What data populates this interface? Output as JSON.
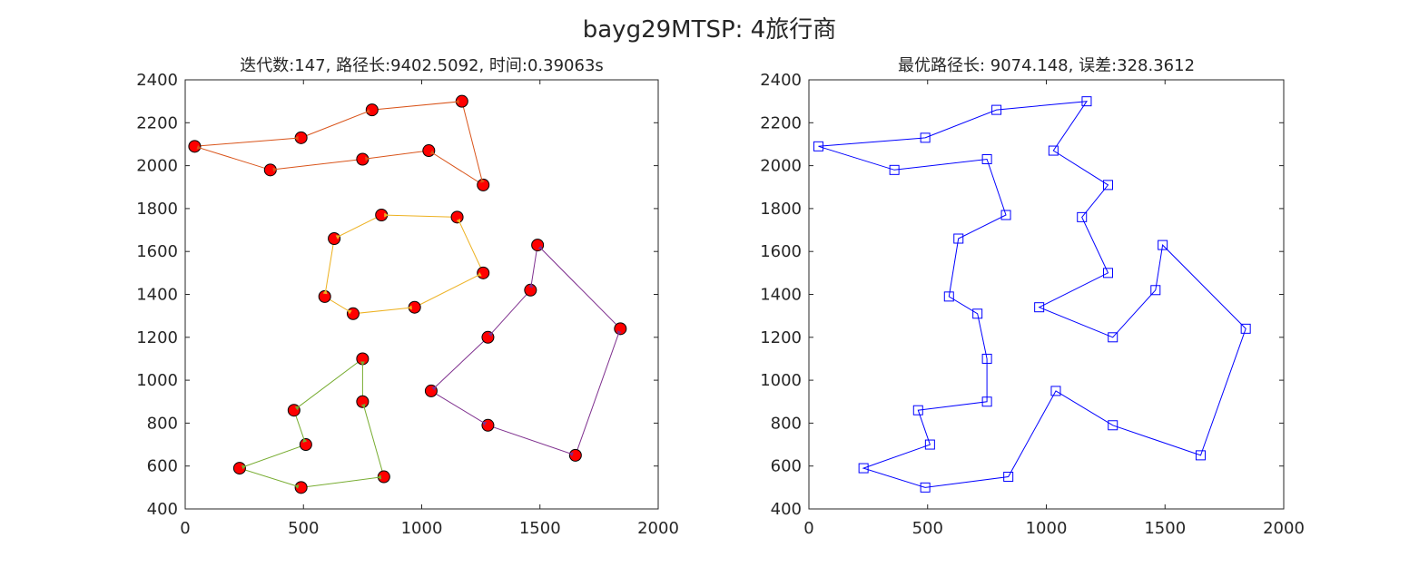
{
  "figure": {
    "title": "bayg29MTSP: 4旅行商"
  },
  "chart_data": [
    {
      "type": "line",
      "panel": "left",
      "title": "迭代数:147, 路径长:9402.5092, 时间:0.39063s",
      "xlabel": "",
      "ylabel": "",
      "xlim": [
        0,
        2000
      ],
      "ylim": [
        400,
        2400
      ],
      "x_ticks": [
        0,
        500,
        1000,
        1500,
        2000
      ],
      "y_ticks": [
        400,
        600,
        800,
        1000,
        1200,
        1400,
        1600,
        1800,
        2000,
        2200,
        2400
      ],
      "grid": false,
      "marker_face": "#ff0000",
      "marker_edge": "#000000",
      "series": [
        {
          "color": "#d95319",
          "x": [
            40,
            360,
            750,
            1030,
            1260,
            1170,
            790,
            490,
            40
          ],
          "y": [
            2090,
            1980,
            2030,
            2070,
            1910,
            2300,
            2260,
            2130,
            2090
          ]
        },
        {
          "color": "#edb120",
          "x": [
            630,
            830,
            1150,
            1260,
            970,
            710,
            590,
            630
          ],
          "y": [
            1660,
            1770,
            1760,
            1500,
            1340,
            1310,
            1390,
            1660
          ]
        },
        {
          "color": "#7e2f8e",
          "x": [
            1040,
            1280,
            1460,
            1490,
            1840,
            1650,
            1280,
            1040
          ],
          "y": [
            950,
            1200,
            1420,
            1630,
            1240,
            650,
            790,
            950
          ]
        },
        {
          "color": "#77ac30",
          "x": [
            460,
            750,
            750,
            840,
            490,
            230,
            510,
            460
          ],
          "y": [
            860,
            1100,
            900,
            550,
            500,
            590,
            700,
            860
          ]
        }
      ]
    },
    {
      "type": "line",
      "panel": "right",
      "title": "最优路径长: 9074.148, 误差:328.3612",
      "xlabel": "",
      "ylabel": "",
      "xlim": [
        0,
        2000
      ],
      "ylim": [
        400,
        2400
      ],
      "x_ticks": [
        0,
        500,
        1000,
        1500,
        2000
      ],
      "y_ticks": [
        400,
        600,
        800,
        1000,
        1200,
        1400,
        1600,
        1800,
        2000,
        2200,
        2400
      ],
      "grid": false,
      "marker": "square",
      "series": [
        {
          "color": "#0000ff",
          "x": [
            40,
            490,
            790,
            1170,
            1030,
            1260,
            1150,
            1260,
            970,
            1280,
            1460,
            1490,
            1840,
            1650,
            1280,
            1040,
            840,
            490,
            230,
            510,
            460,
            750,
            750,
            710,
            590,
            630,
            830,
            750,
            360,
            40
          ],
          "y": [
            2090,
            2130,
            2260,
            2300,
            2070,
            1910,
            1760,
            1500,
            1340,
            1200,
            1420,
            1630,
            1240,
            650,
            790,
            950,
            550,
            500,
            590,
            700,
            860,
            900,
            1100,
            1310,
            1390,
            1660,
            1770,
            2030,
            1980,
            2090
          ]
        }
      ]
    }
  ]
}
